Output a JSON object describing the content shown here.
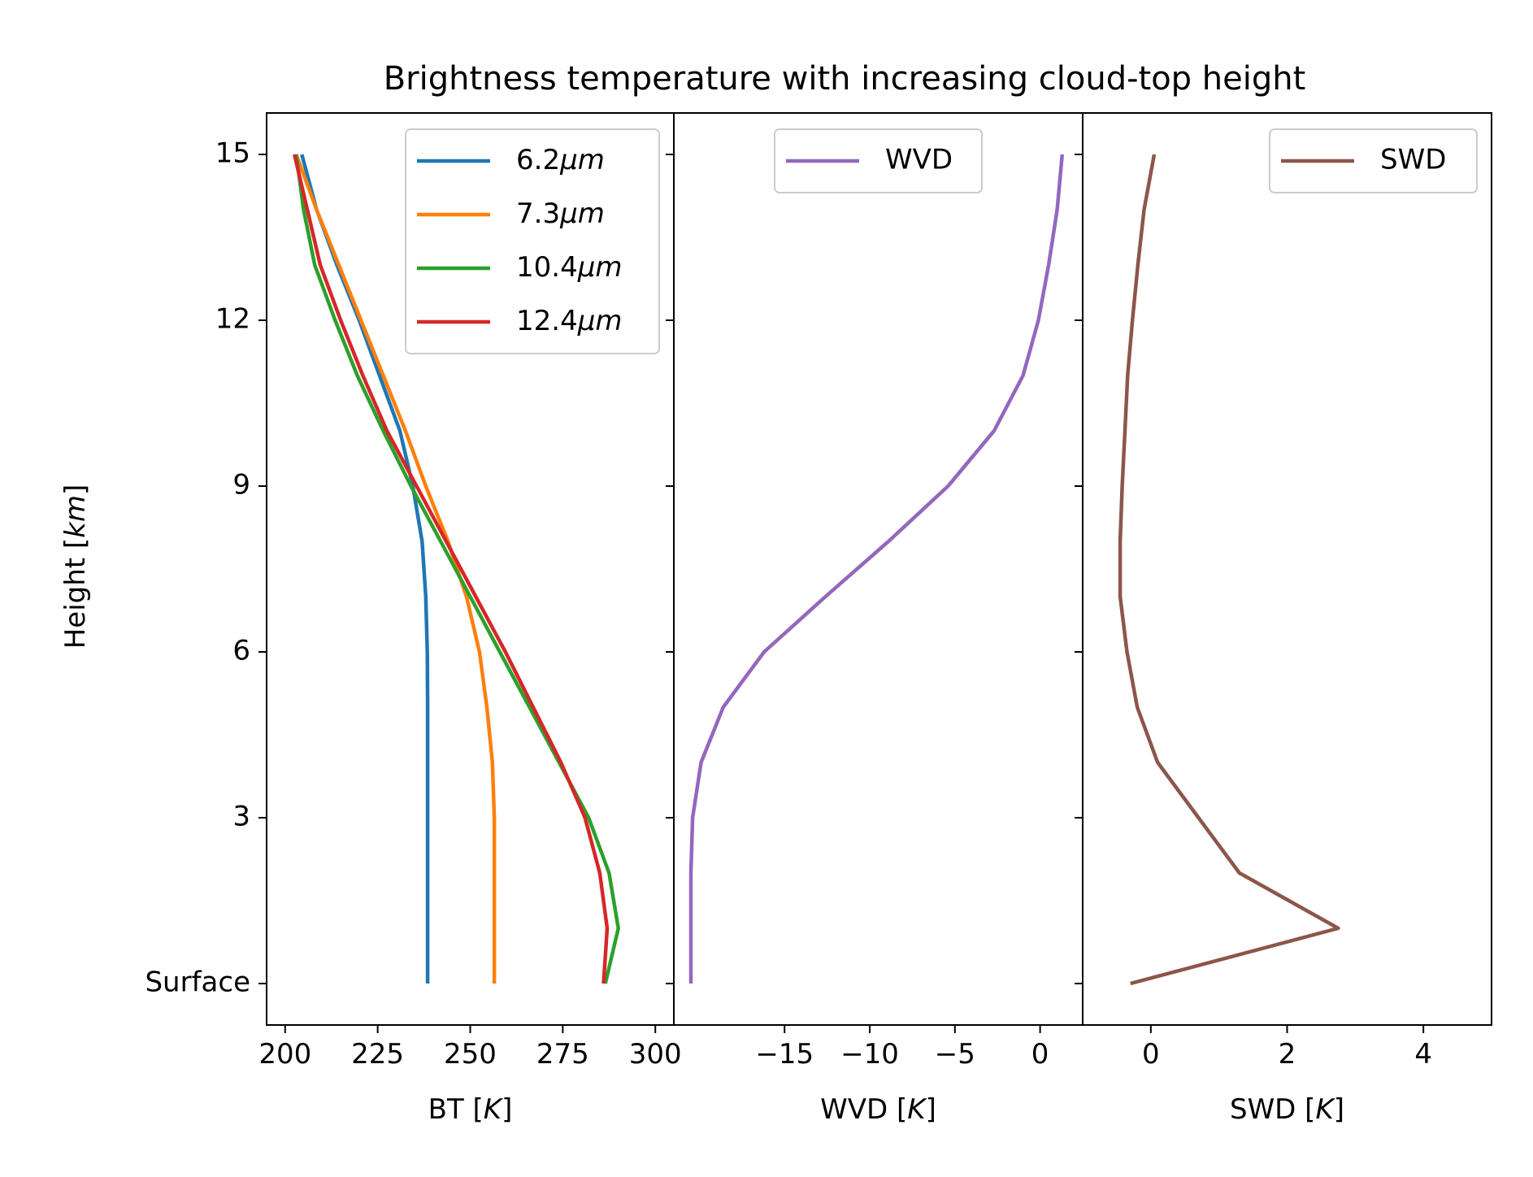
{
  "title": "Brightness temperature with increasing cloud-top height",
  "shared_y": {
    "label": "Height [km]",
    "ylim": [
      -0.75,
      15.75
    ],
    "ticks": [
      0,
      3,
      6,
      9,
      12,
      15
    ],
    "tick_labels": [
      "Surface",
      "3",
      "6",
      "9",
      "12",
      "15"
    ]
  },
  "chart_data": [
    {
      "type": "line",
      "xlabel": "BT [K]",
      "xlim": [
        195,
        305
      ],
      "xticks": [
        200,
        225,
        250,
        275,
        300
      ],
      "xtick_labels": [
        "200",
        "225",
        "250",
        "275",
        "300"
      ],
      "legend": "upper-right",
      "y": [
        0,
        1,
        2,
        3,
        4,
        5,
        6,
        7,
        8,
        9,
        10,
        11,
        12,
        13,
        14,
        15
      ],
      "series": [
        {
          "name": "6.2μm",
          "color": "#1f77b4",
          "values": [
            238.5,
            238.5,
            238.5,
            238.5,
            238.5,
            238.5,
            238.4,
            238.0,
            237.0,
            234.5,
            231.0,
            225.5,
            220.0,
            214.0,
            208.5,
            204.5
          ]
        },
        {
          "name": "7.3μm",
          "color": "#ff7f0e",
          "values": [
            256.5,
            256.5,
            256.5,
            256.5,
            256.0,
            254.5,
            252.5,
            249.0,
            244.0,
            238.0,
            232.5,
            226.5,
            220.5,
            214.5,
            208.5,
            203.0
          ]
        },
        {
          "name": "10.4μm",
          "color": "#2ca02c",
          "values": [
            286.5,
            290.0,
            287.5,
            282.0,
            274.0,
            266.0,
            258.0,
            250.0,
            242.0,
            234.0,
            226.5,
            219.5,
            213.5,
            208.0,
            205.0,
            203.0
          ]
        },
        {
          "name": "12.4μm",
          "color": "#d62728",
          "values": [
            286.0,
            287.0,
            285.0,
            281.0,
            274.5,
            267.0,
            259.5,
            251.5,
            243.5,
            235.5,
            227.5,
            221.0,
            215.0,
            209.5,
            206.0,
            202.5
          ]
        }
      ]
    },
    {
      "type": "line",
      "xlabel": "WVD [K]",
      "xlim": [
        -21.5,
        2.5
      ],
      "xticks": [
        -15,
        -10,
        -5,
        0
      ],
      "xtick_labels": [
        "−15",
        "−10",
        "−5",
        "0"
      ],
      "legend": "upper-center",
      "y": [
        0,
        1,
        2,
        3,
        4,
        5,
        6,
        7,
        8,
        9,
        10,
        11,
        12,
        13,
        14,
        15
      ],
      "series": [
        {
          "name": "WVD",
          "color": "#9467bd",
          "values": [
            -20.5,
            -20.5,
            -20.5,
            -20.4,
            -19.9,
            -18.6,
            -16.2,
            -12.6,
            -8.9,
            -5.4,
            -2.7,
            -1.0,
            -0.1,
            0.5,
            1.0,
            1.3
          ]
        }
      ]
    },
    {
      "type": "line",
      "xlabel": "SWD [K]",
      "xlim": [
        -1,
        5
      ],
      "xticks": [
        0,
        2,
        4
      ],
      "xtick_labels": [
        "0",
        "2",
        "4"
      ],
      "legend": "upper-right",
      "y": [
        0,
        1,
        2,
        3,
        4,
        5,
        6,
        7,
        8,
        9,
        10,
        11,
        12,
        13,
        14,
        15
      ],
      "series": [
        {
          "name": "SWD",
          "color": "#8c564b",
          "values": [
            -0.3,
            2.75,
            1.3,
            0.7,
            0.1,
            -0.2,
            -0.35,
            -0.45,
            -0.45,
            -0.42,
            -0.38,
            -0.34,
            -0.27,
            -0.19,
            -0.1,
            0.05
          ]
        }
      ]
    }
  ]
}
